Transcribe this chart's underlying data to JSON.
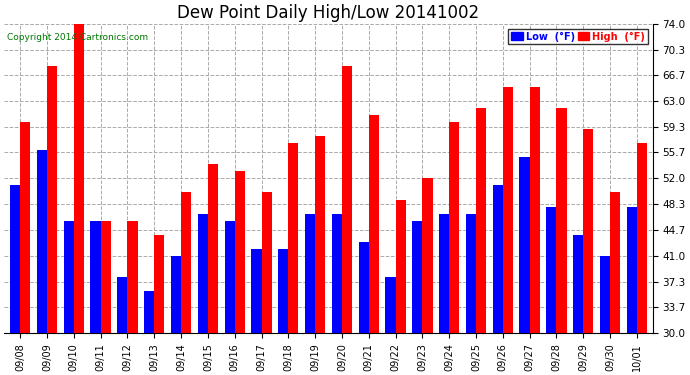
{
  "title": "Dew Point Daily High/Low 20141002",
  "copyright": "Copyright 2014 Cartronics.com",
  "dates": [
    "09/08",
    "09/09",
    "09/10",
    "09/11",
    "09/12",
    "09/13",
    "09/14",
    "09/15",
    "09/16",
    "09/17",
    "09/18",
    "09/19",
    "09/20",
    "09/21",
    "09/22",
    "09/23",
    "09/24",
    "09/25",
    "09/26",
    "09/27",
    "09/28",
    "09/29",
    "09/30",
    "10/01"
  ],
  "low_values": [
    51.0,
    56.0,
    46.0,
    46.0,
    38.0,
    36.0,
    41.0,
    47.0,
    46.0,
    42.0,
    42.0,
    47.0,
    47.0,
    43.0,
    38.0,
    46.0,
    47.0,
    47.0,
    51.0,
    55.0,
    48.0,
    44.0,
    41.0,
    48.0
  ],
  "high_values": [
    60.0,
    68.0,
    74.0,
    46.0,
    46.0,
    44.0,
    50.0,
    54.0,
    53.0,
    50.0,
    57.0,
    58.0,
    68.0,
    61.0,
    49.0,
    52.0,
    60.0,
    62.0,
    65.0,
    65.0,
    62.0,
    59.0,
    50.0,
    57.0
  ],
  "ymin": 30.0,
  "ymax": 74.0,
  "yticks": [
    30.0,
    33.7,
    37.3,
    41.0,
    44.7,
    48.3,
    52.0,
    55.7,
    59.3,
    63.0,
    66.7,
    70.3,
    74.0
  ],
  "bar_width": 0.38,
  "low_color": "#0000FF",
  "high_color": "#FF0000",
  "bg_color": "#FFFFFF",
  "grid_color": "#AAAAAA",
  "title_fontsize": 12,
  "copyright_color": "#007700",
  "legend_low_label": "Low  (°F)",
  "legend_high_label": "High  (°F)"
}
